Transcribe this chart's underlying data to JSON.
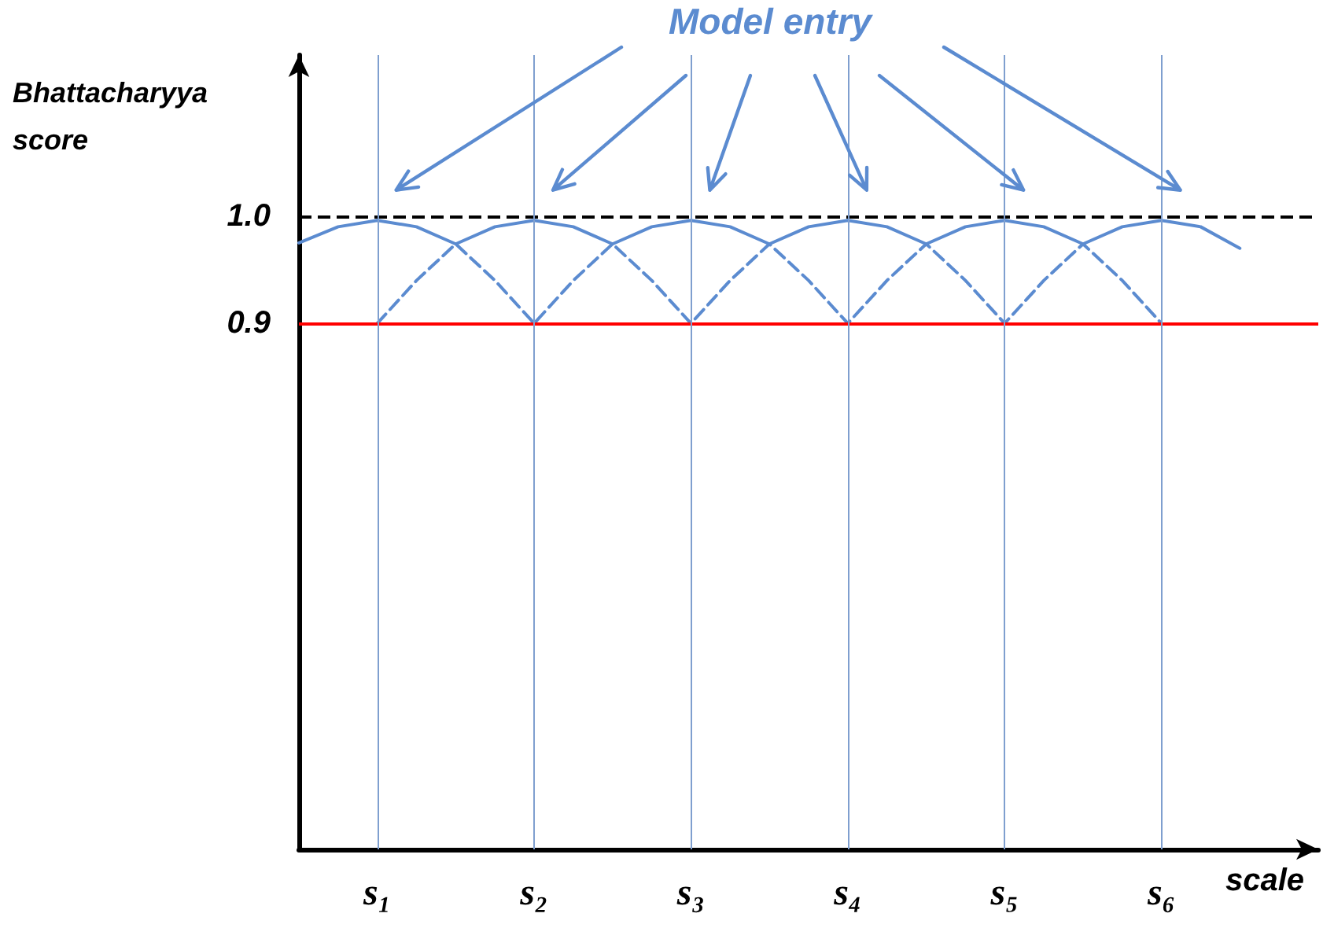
{
  "chart_data": {
    "type": "line",
    "ylabel": "Bhattacharyya score",
    "xlabel": "scale",
    "annotations": [
      "Model entry"
    ],
    "categories": [
      null,
      null,
      "s₁",
      null,
      null,
      null,
      "s₂",
      null,
      null,
      null,
      "s₃",
      null,
      null,
      null,
      "s₄",
      null,
      null,
      null,
      "s₅",
      null,
      null,
      null,
      "s₆",
      null,
      null,
      null,
      null
    ],
    "ylim": [
      0.41,
      1.15
    ],
    "yticks": [
      0.9,
      {
        "value": 1.0,
        "label": "1.0"
      }
    ],
    "grid": false,
    "marker": "none",
    "series": [
      {
        "color": "#5b8bd0",
        "line_style": "solid",
        "values": [
          0.975,
          0.99,
          0.996,
          0.99,
          0.974,
          0.99,
          0.996,
          0.99,
          0.974,
          0.99,
          0.996,
          0.99,
          0.974,
          0.99,
          0.996,
          0.99,
          0.974,
          0.99,
          0.996,
          0.99,
          0.974,
          0.99,
          0.996,
          0.99,
          0.97,
          null,
          null
        ]
      },
      {
        "color": "#5b8bd0",
        "line_style": "dashed",
        "values": [
          null,
          null,
          0.9,
          0.94,
          0.974,
          0.94,
          0.9,
          0.94,
          0.974,
          0.94,
          0.9,
          0.94,
          0.974,
          0.94,
          0.9,
          0.94,
          0.974,
          0.94,
          0.9,
          0.94,
          0.974,
          0.94,
          0.9,
          null,
          null,
          null,
          null
        ]
      }
    ],
    "ref_lines": [
      {
        "axis": "y",
        "value": 1.0,
        "color": "#000000",
        "line_style": "dashed"
      },
      {
        "axis": "y",
        "value": 0.9,
        "color": "#ff0000",
        "line_style": "solid"
      },
      {
        "axis": "x",
        "value": "s₁",
        "color": "#7f9fcf",
        "line_style": "solid"
      },
      {
        "axis": "x",
        "value": "s₂",
        "color": "#7f9fcf",
        "line_style": "solid"
      },
      {
        "axis": "x",
        "value": "s₃",
        "color": "#7f9fcf",
        "line_style": "solid"
      },
      {
        "axis": "x",
        "value": "s₄",
        "color": "#7f9fcf",
        "line_style": "solid"
      },
      {
        "axis": "x",
        "value": "s₅",
        "color": "#7f9fcf",
        "line_style": "solid"
      },
      {
        "axis": "x",
        "value": "s₆",
        "color": "#7f9fcf",
        "line_style": "solid"
      }
    ]
  }
}
